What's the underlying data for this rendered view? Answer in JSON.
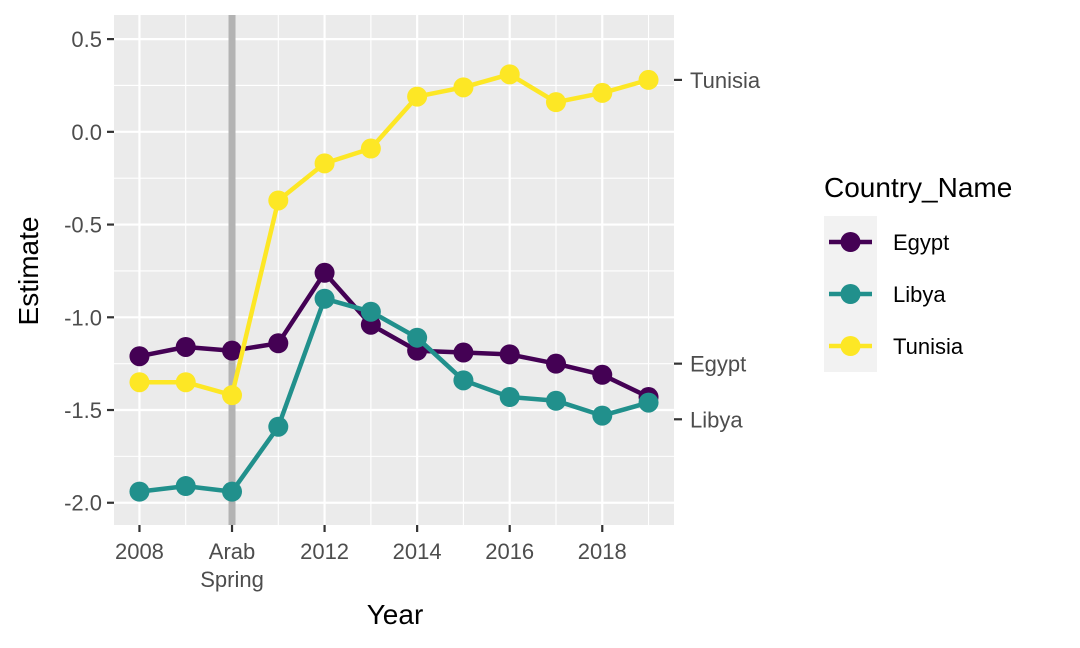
{
  "chart_data": {
    "type": "line",
    "xlabel": "Year",
    "ylabel": "Estimate",
    "xlim": [
      2007.45,
      2019.55
    ],
    "ylim": [
      -2.12,
      0.63
    ],
    "x_ticks": [
      {
        "value": 2008,
        "label": "2008"
      },
      {
        "value": 2010,
        "label": "Arab\nSpring"
      },
      {
        "value": 2012,
        "label": "2012"
      },
      {
        "value": 2014,
        "label": "2014"
      },
      {
        "value": 2016,
        "label": "2016"
      },
      {
        "value": 2018,
        "label": "2018"
      }
    ],
    "y_ticks": [
      {
        "value": 0.5,
        "label": "0.5"
      },
      {
        "value": 0.0,
        "label": "0.0"
      },
      {
        "value": -0.5,
        "label": "-0.5"
      },
      {
        "value": -1.0,
        "label": "-1.0"
      },
      {
        "value": -1.5,
        "label": "-1.5"
      },
      {
        "value": -2.0,
        "label": "-2.0"
      }
    ],
    "vertical_marker": {
      "x": 2010,
      "color": "#b3b3b3"
    },
    "x": [
      2008,
      2009,
      2010,
      2011,
      2012,
      2013,
      2014,
      2015,
      2016,
      2017,
      2018,
      2019
    ],
    "series": [
      {
        "name": "Egypt",
        "color": "#440154",
        "values": [
          -1.21,
          -1.16,
          -1.18,
          -1.14,
          -0.76,
          -1.04,
          -1.18,
          -1.19,
          -1.2,
          -1.25,
          -1.31,
          -1.43
        ]
      },
      {
        "name": "Libya",
        "color": "#21908C",
        "values": [
          -1.94,
          -1.91,
          -1.94,
          -1.59,
          -0.9,
          -0.97,
          -1.11,
          -1.34,
          -1.43,
          -1.45,
          -1.53,
          -1.46
        ]
      },
      {
        "name": "Tunisia",
        "color": "#FDE725",
        "values": [
          -1.35,
          -1.35,
          -1.42,
          -0.37,
          -0.17,
          -0.09,
          0.19,
          0.24,
          0.31,
          0.16,
          0.21,
          0.28
        ]
      }
    ],
    "end_labels": [
      {
        "series": "Tunisia",
        "label": "Tunisia",
        "y": 0.28
      },
      {
        "series": "Egypt",
        "label": "Egypt",
        "y": -1.25
      },
      {
        "series": "Libya",
        "label": "Libya",
        "y": -1.55
      }
    ],
    "legend": {
      "title": "Country_Name",
      "position": "right"
    },
    "grid": true
  }
}
